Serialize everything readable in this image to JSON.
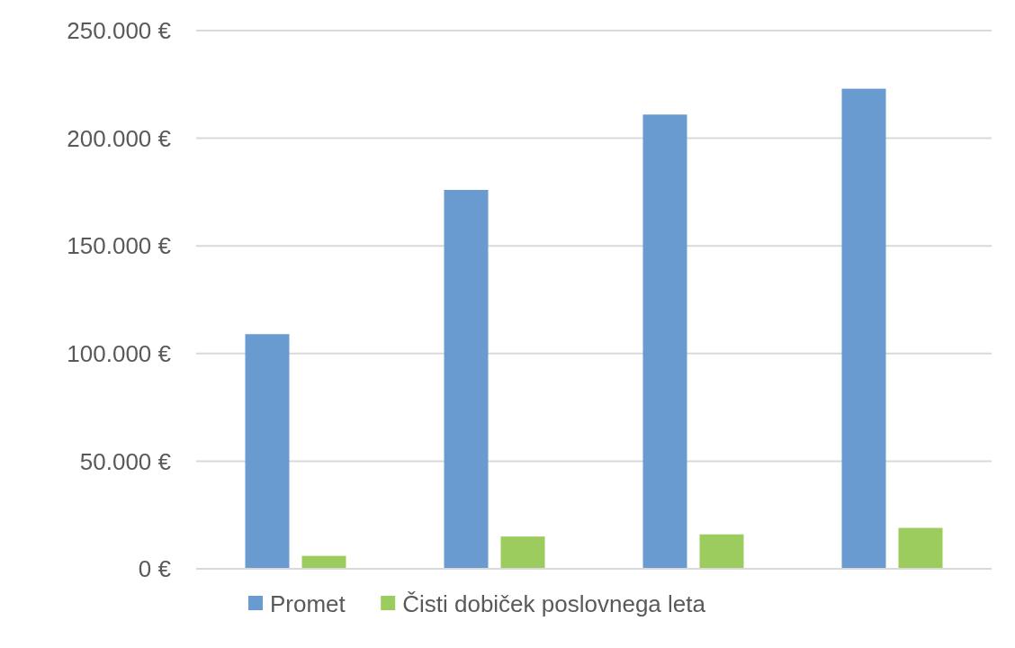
{
  "chart_data": {
    "type": "bar",
    "categories": [
      null,
      null,
      null,
      null
    ],
    "series": [
      {
        "name": "Promet",
        "color": "#699bd0",
        "values": [
          109000,
          176000,
          211000,
          223000
        ]
      },
      {
        "name": "Čisti dobiček poslovnega leta",
        "color": "#9ccc5e",
        "values": [
          6000,
          15000,
          16000,
          19000
        ]
      }
    ],
    "ylim": [
      0,
      250000
    ],
    "yticks": [
      {
        "value": 0,
        "label": "0 €"
      },
      {
        "value": 50000,
        "label": "50.000 €"
      },
      {
        "value": 100000,
        "label": "100.000 €"
      },
      {
        "value": 150000,
        "label": "150.000 €"
      },
      {
        "value": 200000,
        "label": "200.000 €"
      },
      {
        "value": 250000,
        "label": "250.000 €"
      }
    ],
    "grid": "y",
    "legend": "bottom"
  }
}
